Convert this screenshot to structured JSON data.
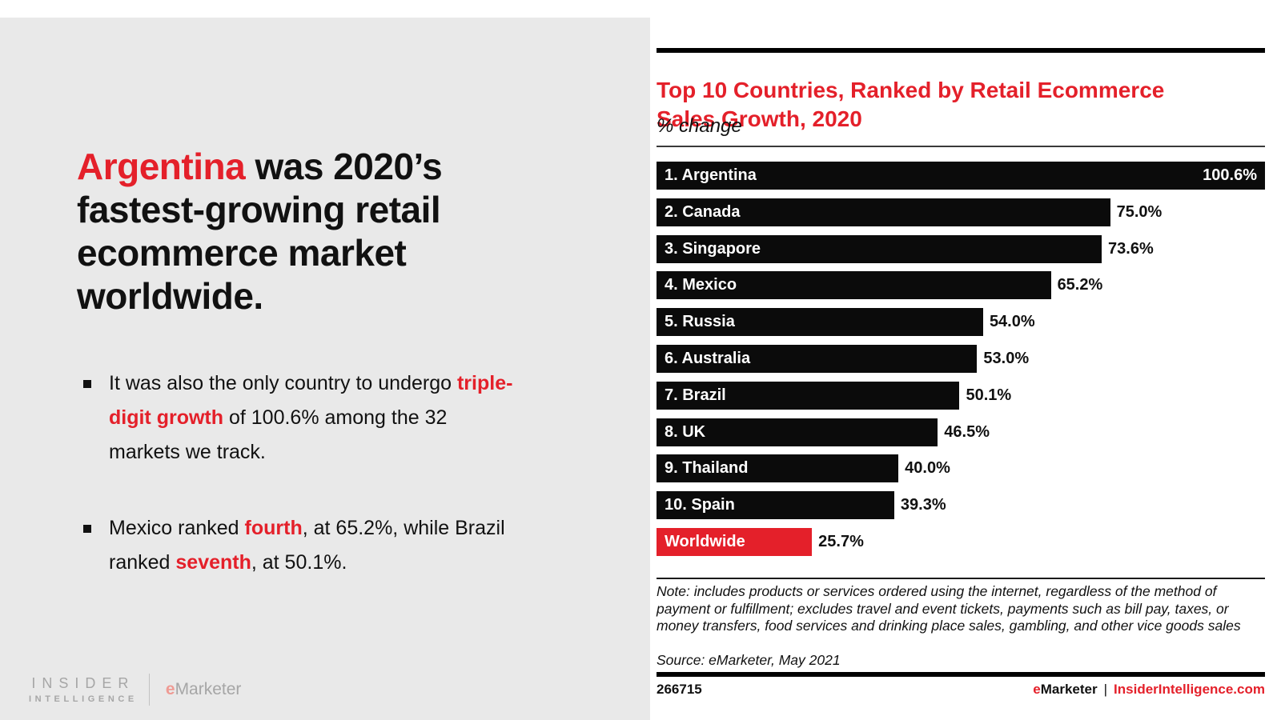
{
  "left_panel": {
    "headline": {
      "segments": [
        {
          "text": "Argentina",
          "style": "red"
        },
        {
          "text": " was 2020’s fastest-growing retail ecommerce market worldwide.",
          "style": "normal"
        }
      ]
    },
    "bullets": [
      {
        "segments": [
          {
            "text": "It was also the only country to undergo ",
            "style": "normal"
          },
          {
            "text": "triple-digit growth",
            "style": "red"
          },
          {
            "text": " of 100.6% among the 32 markets we track.",
            "style": "normal"
          }
        ]
      },
      {
        "segments": [
          {
            "text": "Mexico ranked ",
            "style": "normal"
          },
          {
            "text": "fourth",
            "style": "red"
          },
          {
            "text": ", at 65.2%, while Brazil ranked ",
            "style": "normal"
          },
          {
            "text": "seventh",
            "style": "red"
          },
          {
            "text": ", at 50.1%.",
            "style": "normal"
          }
        ]
      }
    ],
    "logo": {
      "line1": "INSIDER",
      "line2": "INTELLIGENCE",
      "brand_e": "e",
      "brand_rest": "Marketer"
    }
  },
  "chart": {
    "title": "Top 10 Countries, Ranked by Retail Ecommerce Sales Growth, 2020",
    "subtitle": "% change",
    "note": "Note: includes products or services ordered using the internet, regardless of the method of payment or fulfillment; excludes travel and event tickets, payments such as bill pay, taxes, or money transfers, food services and drinking place sales, gambling, and other vice goods sales",
    "source": "Source: eMarketer, May 2021",
    "footer_id": "266715",
    "footer_brand_e": "e",
    "footer_brand_rest": "Marketer",
    "footer_separator": "|",
    "footer_link": "InsiderIntelligence.com"
  },
  "chart_data": {
    "type": "bar",
    "orientation": "horizontal",
    "title": "Top 10 Countries, Ranked by Retail Ecommerce Sales Growth, 2020",
    "subtitle": "% change",
    "xlabel": "% change",
    "ylabel": "",
    "xlim": [
      0,
      100.6
    ],
    "grid": false,
    "legend": false,
    "categories": [
      "1. Argentina",
      "2. Canada",
      "3. Singapore",
      "4. Mexico",
      "5. Russia",
      "6. Australia",
      "7. Brazil",
      "8. UK",
      "9. Thailand",
      "10. Spain",
      "Worldwide"
    ],
    "values": [
      100.6,
      75.0,
      73.6,
      65.2,
      54.0,
      53.0,
      50.1,
      46.5,
      40.0,
      39.3,
      25.7
    ],
    "value_labels": [
      "100.6%",
      "75.0%",
      "73.6%",
      "65.2%",
      "54.0%",
      "53.0%",
      "50.1%",
      "46.5%",
      "40.0%",
      "39.3%",
      "25.7%"
    ],
    "bar_colors": [
      "#0b0b0b",
      "#0b0b0b",
      "#0b0b0b",
      "#0b0b0b",
      "#0b0b0b",
      "#0b0b0b",
      "#0b0b0b",
      "#0b0b0b",
      "#0b0b0b",
      "#0b0b0b",
      "#e4202a"
    ],
    "value_inside": [
      true,
      false,
      false,
      false,
      false,
      false,
      false,
      false,
      false,
      false,
      false
    ]
  },
  "colors": {
    "accent_red": "#e4202a",
    "bar_black": "#0b0b0b",
    "panel_gray": "#e9e9e9",
    "logo_gray": "#a6a6a6"
  }
}
